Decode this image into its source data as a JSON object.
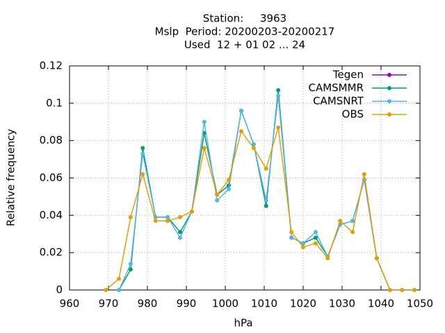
{
  "chart_data": {
    "type": "line",
    "title": [
      "Station:     3963",
      "Mslp  Period: 20200203-20200217",
      "Used  12 + 01 02 ... 24"
    ],
    "x_label": "hPa",
    "y_label": "Relative frequency",
    "x": [
      969.3,
      972.7,
      975.7,
      978.8,
      982.1,
      985.2,
      988.4,
      991.4,
      994.6,
      997.9,
      1000.9,
      1004.1,
      1007.3,
      1010.5,
      1013.6,
      1017.0,
      1020.0,
      1023.2,
      1026.3,
      1029.5,
      1032.7,
      1035.7,
      1038.9,
      1042.3,
      1045.4,
      1048.6
    ],
    "series": [
      {
        "name": "Tegen",
        "color": "#9400d3",
        "values": [
          null,
          null,
          null,
          null,
          null,
          null,
          null,
          null,
          null,
          null,
          null,
          null,
          null,
          null,
          null,
          null,
          null,
          null,
          null,
          null,
          null,
          null,
          null,
          null,
          null,
          null
        ]
      },
      {
        "name": "CAMSMMR",
        "color": "#009e73",
        "values": [
          null,
          0,
          0.011,
          0.076,
          0.039,
          0.039,
          0.031,
          0.042,
          0.084,
          0.051,
          0.056,
          0.096,
          0.078,
          0.045,
          0.107,
          0.028,
          0.025,
          0.028,
          0.018,
          0.035,
          0.037,
          0.059,
          0.017,
          0,
          0,
          0
        ]
      },
      {
        "name": "CAMSNRT",
        "color": "#56b4e9",
        "values": [
          null,
          0,
          0.014,
          0.073,
          0.039,
          0.039,
          0.028,
          0.042,
          0.09,
          0.048,
          0.054,
          0.096,
          0.078,
          0.048,
          0.104,
          0.028,
          0.025,
          0.031,
          0.018,
          0.035,
          0.037,
          0.059,
          0.017,
          0,
          0,
          0
        ]
      },
      {
        "name": "OBS",
        "color": "#e69f00",
        "values": [
          0,
          0.006,
          0.039,
          0.062,
          0.037,
          0.037,
          0.039,
          0.042,
          0.076,
          0.051,
          0.059,
          0.085,
          0.076,
          0.065,
          0.087,
          0.031,
          0.023,
          0.025,
          0.017,
          0.037,
          0.031,
          0.062,
          0.017,
          0,
          0,
          0
        ]
      }
    ],
    "xlim": [
      960,
      1050
    ],
    "xticks": [
      960,
      970,
      980,
      990,
      1000,
      1010,
      1020,
      1030,
      1040,
      1050
    ],
    "ylim": [
      0,
      0.12
    ],
    "yticks": [
      0,
      0.02,
      0.04,
      0.06,
      0.08,
      0.1,
      0.12
    ],
    "grid": true,
    "legend": "top-right"
  }
}
